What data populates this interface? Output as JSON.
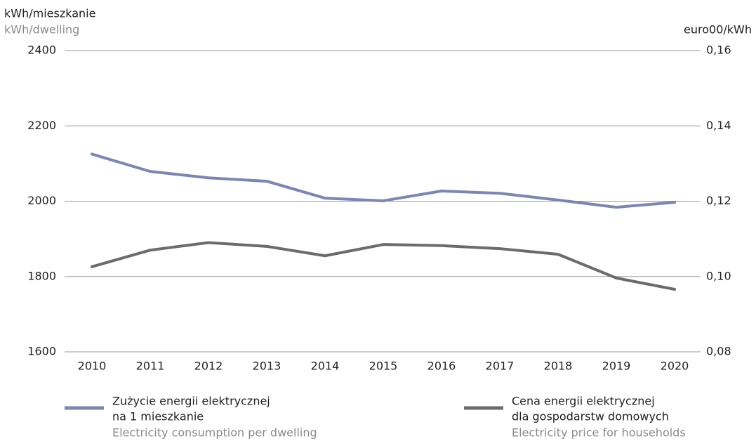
{
  "chart_data": {
    "type": "line",
    "ylabel": "kWh/mieszkanie",
    "ylabel_en": "kWh/dwelling",
    "y2label": "euro00/kWh",
    "categories": [
      "2010",
      "2011",
      "2012",
      "2013",
      "2014",
      "2015",
      "2016",
      "2017",
      "2018",
      "2019",
      "2020"
    ],
    "series": [
      {
        "name": [
          "Zużycie energii elektrycznej",
          "na 1 mieszkanie"
        ],
        "name_en": "Electricity consumption per dwelling",
        "color": "#7b86b4",
        "values": [
          2125,
          2079,
          2062,
          2053,
          2008,
          2001,
          2027,
          2021,
          2003,
          1984,
          1997
        ]
      },
      {
        "name": [
          "Cena energii elektrycznej",
          "dla gospodarstw domowych"
        ],
        "name_en": "Electricity price for households",
        "color": "#6b6b6b",
        "axis": "y2",
        "values": [
          0.1026,
          0.107,
          0.109,
          0.108,
          0.1055,
          0.1085,
          0.1082,
          0.1074,
          0.1059,
          0.0996,
          0.0966
        ]
      }
    ],
    "ylim": [
      1600,
      2400
    ],
    "yticks": [
      1600,
      1800,
      2000,
      2200,
      2400
    ],
    "y2lim": [
      0.08,
      0.16
    ],
    "y2ticks": [
      {
        "value": 0.08,
        "label": "0,08"
      },
      {
        "value": 0.1,
        "label": "0,10"
      },
      {
        "value": 0.12,
        "label": "0,12"
      },
      {
        "value": 0.14,
        "label": "0,14"
      },
      {
        "value": 0.16,
        "label": "0,16"
      }
    ],
    "grid": true
  }
}
